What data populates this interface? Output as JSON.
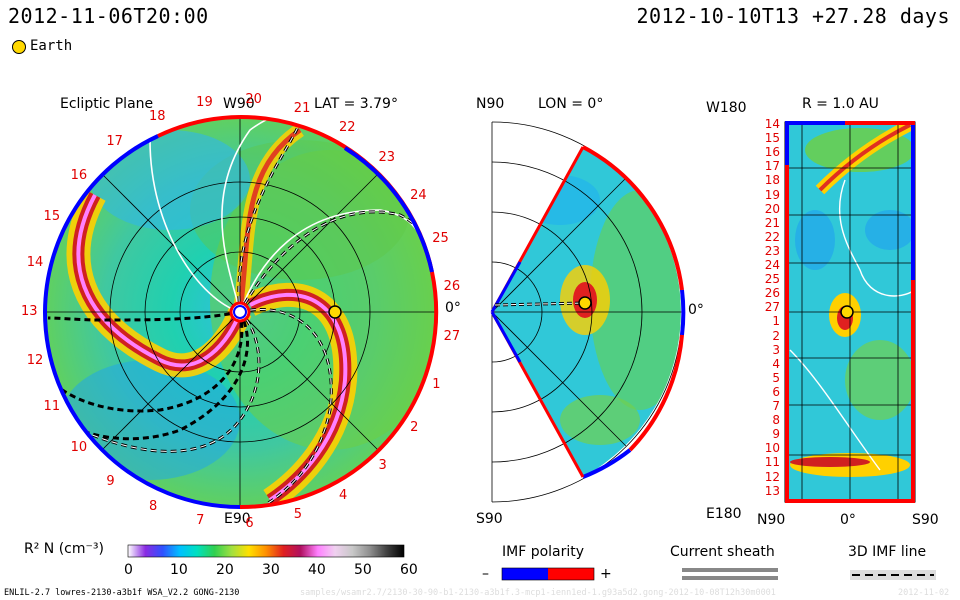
{
  "header": {
    "timestamp": "2012-11-06T20:00",
    "run_info": "2012-10-10T13 +27.28 days"
  },
  "legend": {
    "earth_label": "Earth"
  },
  "panel_ecliptic": {
    "title": "Ecliptic Plane",
    "lat_label": "LAT = 3.79°",
    "top_label": "W90",
    "bottom_label": "E90",
    "right_label": "0°",
    "numbers": [
      "19",
      "20",
      "21",
      "22",
      "23",
      "24",
      "25",
      "26",
      "27",
      "1",
      "2",
      "3",
      "4",
      "5",
      "6",
      "7",
      "8",
      "9",
      "10",
      "11",
      "12",
      "13",
      "14",
      "15",
      "16",
      "17",
      "18"
    ]
  },
  "panel_meridional": {
    "top_left_label": "N90",
    "lon_label": "LON = 0°",
    "bottom_left_label": "S90",
    "right_label": "0°"
  },
  "panel_radial": {
    "r_label": "R = 1.0 AU",
    "top_left_label": "W180",
    "bottom_left_label": "E180",
    "x_labels": [
      "N90",
      "0°",
      "S90"
    ],
    "y_labels": [
      "14",
      "15",
      "16",
      "17",
      "18",
      "19",
      "20",
      "21",
      "22",
      "23",
      "24",
      "25",
      "26",
      "27",
      "1",
      "2",
      "3",
      "4",
      "5",
      "6",
      "7",
      "8",
      "9",
      "10",
      "11",
      "12",
      "13"
    ]
  },
  "colorbar": {
    "label": "R² N (cm⁻³)",
    "ticks": [
      "0",
      "10",
      "20",
      "30",
      "40",
      "50",
      "60"
    ],
    "colors": [
      "#ffffff",
      "#8a2be2",
      "#3050ff",
      "#00c0ff",
      "#00e0c0",
      "#30d050",
      "#a0e040",
      "#ffe000",
      "#ff9000",
      "#e02020",
      "#b01060",
      "#ff80ff",
      "#f0d0f0",
      "#c8c8c8",
      "#909090",
      "#404040",
      "#000000"
    ]
  },
  "imf_legend": {
    "title": "IMF polarity",
    "minus": "–",
    "plus": "+",
    "neg_color": "#0000ff",
    "pos_color": "#ff0000"
  },
  "sheath_legend": {
    "title": "Current sheath"
  },
  "imf3d_legend": {
    "title": "3D IMF line"
  },
  "footer": {
    "model_info": "ENLIL-2.7 lowres-2130-a3b1f WSA_V2.2 GONG-2130",
    "path_faint": "samples/wsamr2.7/2130-30-90-b1-2130-a3b1f.3-mcp1-ienn1ed-1.g93a5d2.gong-2012-10-08T12h30m0001",
    "date_faint": "2012-11-02"
  }
}
